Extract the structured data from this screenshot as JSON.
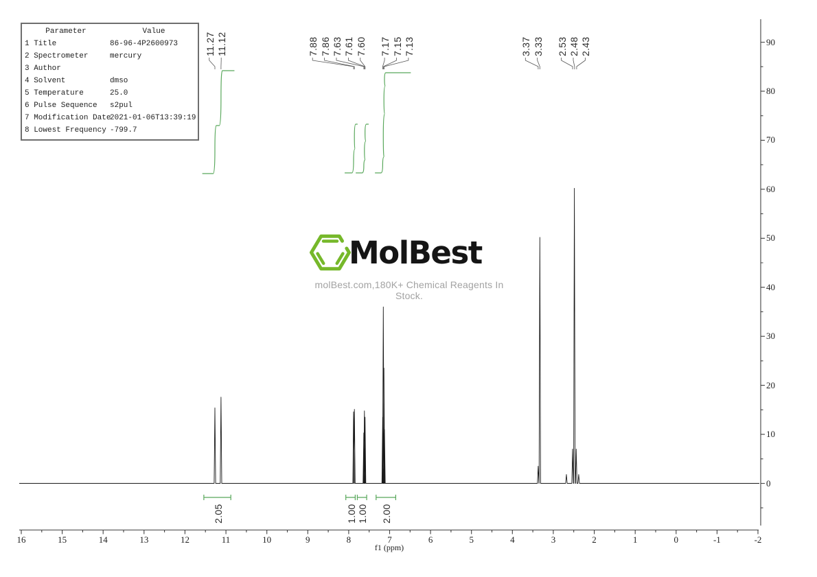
{
  "parameter_table": {
    "headers": [
      "Parameter",
      "Value"
    ],
    "rows": [
      {
        "name": "1 Title",
        "value": "86-96-4P2600973"
      },
      {
        "name": "2 Spectrometer",
        "value": "mercury"
      },
      {
        "name": "3 Author",
        "value": ""
      },
      {
        "name": "4 Solvent",
        "value": "dmso"
      },
      {
        "name": "5 Temperature",
        "value": "25.0"
      },
      {
        "name": "6 Pulse Sequence",
        "value": "s2pul"
      },
      {
        "name": "7 Modification Date",
        "value": "2021-01-06T13:39:19"
      },
      {
        "name": "8 Lowest Frequency",
        "value": "-799.7"
      }
    ]
  },
  "logo": {
    "name": "MolBest",
    "tagline": "molBest.com,180K+ Chemical Reagents In Stock.",
    "hex_color": "#76b82a",
    "text_color": "#151515",
    "tagline_color": "#a2a2a2"
  },
  "chart_data": {
    "type": "line",
    "description": "1H NMR spectrum of sample 86-96-4P2600973 in dmso",
    "xlabel": "f1 (ppm)",
    "x_range": [
      16,
      -2
    ],
    "x_ticks": [
      16,
      15,
      14,
      13,
      12,
      11,
      10,
      9,
      8,
      7,
      6,
      5,
      4,
      3,
      2,
      1,
      0,
      -1,
      -2
    ],
    "y_ticks": [
      0,
      10,
      20,
      30,
      40,
      50,
      60,
      70,
      80,
      90
    ],
    "y_range_displayed": [
      0,
      90
    ],
    "line_color": "#1a1a1a",
    "axis_color": "#404040",
    "integral_color": "#58a75a",
    "connector_color": "#555555",
    "peaks": [
      [
        11.27,
        15.4
      ],
      [
        11.12,
        17.6
      ],
      [
        7.88,
        14.6
      ],
      [
        7.86,
        15.1
      ],
      [
        7.63,
        10.3
      ],
      [
        7.615,
        14.8
      ],
      [
        7.6,
        13.5
      ],
      [
        7.17,
        13.5
      ],
      [
        7.155,
        36.0
      ],
      [
        7.14,
        23.5
      ],
      [
        7.125,
        11.0
      ],
      [
        3.37,
        3.5
      ],
      [
        3.33,
        50.2
      ],
      [
        2.68,
        1.8
      ],
      [
        2.53,
        7.0
      ],
      [
        2.485,
        60.2
      ],
      [
        2.44,
        7.0
      ],
      [
        2.38,
        1.8
      ]
    ],
    "peak_labels": [
      {
        "center_x": 313.5,
        "labels": [
          {
            "text": "11.27",
            "ppm": 11.27
          },
          {
            "text": "11.12",
            "ppm": 11.12
          }
        ]
      },
      {
        "center_x": 490.0,
        "labels": [
          {
            "text": "7.88",
            "ppm": 7.88
          },
          {
            "text": "7.86",
            "ppm": 7.86
          },
          {
            "text": "7.63",
            "ppm": 7.63
          },
          {
            "text": "7.61",
            "ppm": 7.61
          },
          {
            "text": "7.60",
            "ppm": 7.6
          }
        ]
      },
      {
        "center_x": 577.5,
        "labels": [
          {
            "text": "7.17",
            "ppm": 7.17
          },
          {
            "text": "7.15",
            "ppm": 7.15
          },
          {
            "text": "7.13",
            "ppm": 7.13
          }
        ]
      },
      {
        "center_x": 774.0,
        "labels": [
          {
            "text": "3.37",
            "ppm": 3.37
          },
          {
            "text": "3.33",
            "ppm": 3.33
          }
        ]
      },
      {
        "center_x": 835.0,
        "labels": [
          {
            "text": "2.53",
            "ppm": 2.53
          },
          {
            "text": "2.48",
            "ppm": 2.48
          },
          {
            "text": "2.43",
            "ppm": 2.43
          }
        ]
      }
    ],
    "integrals": [
      {
        "value": "2.05",
        "curve_range": [
          11.57,
          10.8
        ],
        "bracket_range": [
          11.54,
          10.88
        ],
        "y_bottom": 253,
        "y_top": 103
      },
      {
        "value": "1.00",
        "curve_range": [
          8.09,
          7.79
        ],
        "bracket_range": [
          8.07,
          7.84
        ],
        "y_bottom": 252,
        "y_top": 181
      },
      {
        "value": "1.00",
        "curve_range": [
          7.82,
          7.52
        ],
        "bracket_range": [
          7.79,
          7.56
        ],
        "y_bottom": 252,
        "y_top": 181
      },
      {
        "value": "2.00",
        "curve_range": [
          7.35,
          6.49
        ],
        "bracket_range": [
          7.33,
          6.85
        ],
        "y_bottom": 252,
        "y_top": 106
      }
    ]
  }
}
